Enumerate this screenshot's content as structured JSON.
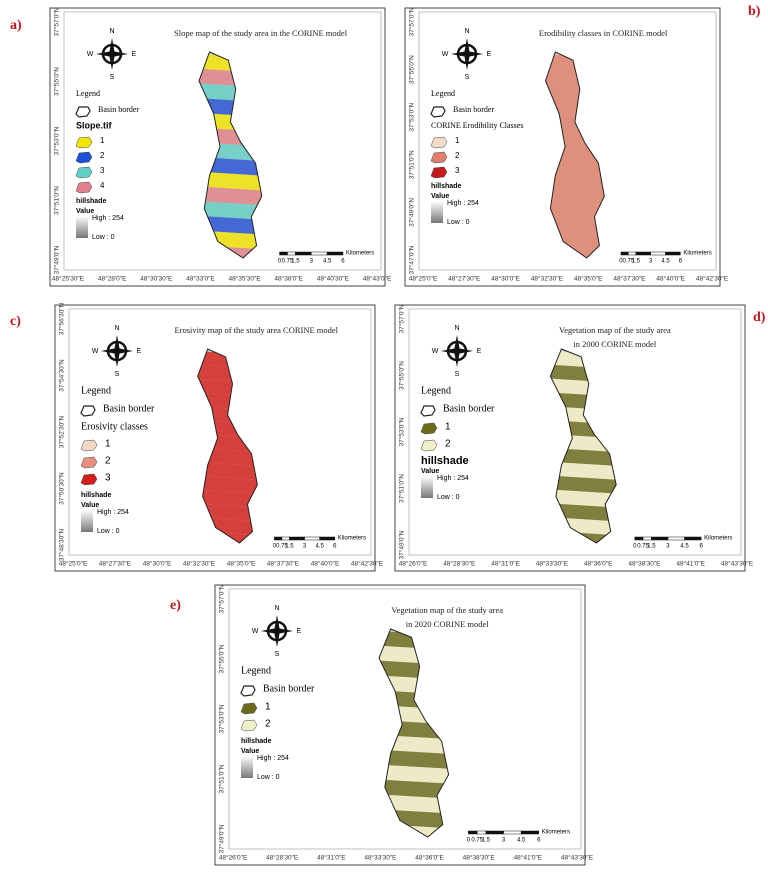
{
  "compass": {
    "n": "N",
    "s": "S",
    "e": "E",
    "w": "W"
  },
  "legend_common": {
    "heading": "Legend",
    "border": "Basin border",
    "hillshade": "hillshade",
    "value": "Value",
    "high": "High : 254",
    "low": "Low : 0"
  },
  "scale_labels": [
    "0",
    "0.75",
    "1.5",
    "3",
    "4.5",
    "6"
  ],
  "scale_unit": "Kilometers",
  "panels": [
    {
      "label": "a)",
      "title": [
        "Slope map of the study area in the CORINE model"
      ],
      "class_title": "Slope.tif",
      "classes": [
        {
          "label": "1",
          "color": "#f2e600"
        },
        {
          "label": "2",
          "color": "#1f4fd8"
        },
        {
          "label": "3",
          "color": "#5fd0c8"
        },
        {
          "label": "4",
          "color": "#e0808a"
        }
      ],
      "x_labels": [
        "48°25'30\"E",
        "48°28'0\"E",
        "48°30'30\"E",
        "48°33'0\"E",
        "48°35'30\"E",
        "48°38'0\"E",
        "48°40'30\"E",
        "48°43'0\"E"
      ],
      "y_labels": [
        "37°57'0\"N",
        "37°55'0\"N",
        "37°53'0\"N",
        "37°51'0\"N",
        "37°49'0\"N"
      ]
    },
    {
      "label": "b)",
      "title": [
        "Erodibility classes in CORINE model"
      ],
      "class_title": "CORINE Erodibility Classes",
      "classes": [
        {
          "label": "1",
          "color": "#f6dcc8"
        },
        {
          "label": "2",
          "color": "#e0806a"
        },
        {
          "label": "3",
          "color": "#c41a1a"
        }
      ],
      "x_labels": [
        "48°25'0\"E",
        "48°27'30\"E",
        "48°30'0\"E",
        "48°32'30\"E",
        "48°35'0\"E",
        "48°37'30\"E",
        "48°40'0\"E",
        "48°42'30\"E"
      ],
      "y_labels": [
        "37°57'0\"N",
        "37°55'0\"N",
        "37°53'0\"N",
        "37°51'0\"N",
        "37°49'0\"N",
        "37°47'0\"N"
      ]
    },
    {
      "label": "c)",
      "title": [
        "Erosivity map of the study area CORINE model"
      ],
      "class_title": "Erosivity classes",
      "classes": [
        {
          "label": "1",
          "color": "#f2d8c4"
        },
        {
          "label": "2",
          "color": "#e89080"
        },
        {
          "label": "3",
          "color": "#d41c1c"
        }
      ],
      "x_labels": [
        "48°25'0\"E",
        "48°27'30\"E",
        "48°30'0\"E",
        "48°32'30\"E",
        "48°35'0\"E",
        "48°37'30\"E",
        "48°40'0\"E",
        "48°42'30\"E"
      ],
      "y_labels": [
        "37°56'30\"N",
        "37°54'30\"N",
        "37°52'30\"N",
        "37°50'30\"N",
        "37°48'30\"N"
      ]
    },
    {
      "label": "d)",
      "title": [
        "Vegetation map of the study area",
        "in 2000 CORINE model"
      ],
      "classes": [
        {
          "label": "1",
          "color": "#6b6a1c"
        },
        {
          "label": "2",
          "color": "#f2f0c8"
        }
      ],
      "x_labels": [
        "48°26'0\"E",
        "48°28'30\"E",
        "48°31'0\"E",
        "48°33'30\"E",
        "48°36'0\"E",
        "48°38'30\"E",
        "48°41'0\"E",
        "48°43'30\"E"
      ],
      "y_labels": [
        "37°57'0\"N",
        "37°55'0\"N",
        "37°53'0\"N",
        "37°51'0\"N",
        "37°49'0\"N"
      ]
    },
    {
      "label": "e)",
      "title": [
        "Vegetation map of the study area",
        "in 2020 CORINE model"
      ],
      "classes": [
        {
          "label": "1",
          "color": "#6b6a1c"
        },
        {
          "label": "2",
          "color": "#f2f0c8"
        }
      ],
      "x_labels": [
        "48°26'0\"E",
        "48°28'30\"E",
        "48°31'0\"E",
        "48°33'30\"E",
        "48°36'0\"E",
        "48°38'30\"E",
        "48°41'0\"E",
        "48°43'30\"E"
      ],
      "y_labels": [
        "37°57'0\"N",
        "37°55'0\"N",
        "37°53'0\"N",
        "37°51'0\"N",
        "37°49'0\"N"
      ]
    }
  ]
}
